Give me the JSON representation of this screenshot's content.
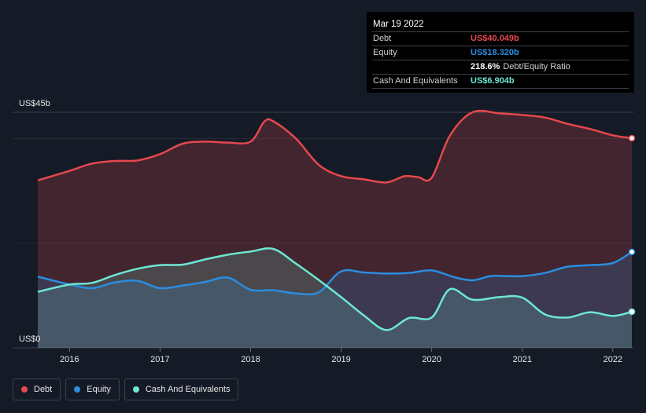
{
  "tooltip": {
    "date": "Mar 19 2022",
    "debt_label": "Debt",
    "debt_value": "US$40.049b",
    "equity_label": "Equity",
    "equity_value": "US$18.320b",
    "ratio_value": "218.6%",
    "ratio_label": "Debt/Equity Ratio",
    "cash_label": "Cash And Equivalents",
    "cash_value": "US$6.904b"
  },
  "legend": {
    "debt": "Debt",
    "equity": "Equity",
    "cash": "Cash And Equivalents"
  },
  "colors": {
    "debt": "#e5484d",
    "equity": "#2b8de0",
    "cash": "#6ee7d4",
    "background": "#151b26"
  },
  "chart_data": {
    "type": "area",
    "title": "",
    "xlabel": "",
    "ylabel": "",
    "ylim": [
      0,
      45
    ],
    "y_ticks": [
      {
        "value": 45,
        "label": "US$45b"
      },
      {
        "value": 0,
        "label": "US$0"
      }
    ],
    "x_ticks": [
      {
        "value": 2016,
        "label": "2016"
      },
      {
        "value": 2017,
        "label": "2017"
      },
      {
        "value": 2018,
        "label": "2018"
      },
      {
        "value": 2019,
        "label": "2019"
      },
      {
        "value": 2020,
        "label": "2020"
      },
      {
        "value": 2021,
        "label": "2021"
      },
      {
        "value": 2022,
        "label": "2022"
      }
    ],
    "xlim": [
      2015.6,
      2022.22
    ],
    "legend_position": "bottom-left",
    "series": [
      {
        "name": "Debt",
        "points": [
          [
            2015.65,
            32
          ],
          [
            2016.0,
            33.8
          ],
          [
            2016.25,
            35.2
          ],
          [
            2016.5,
            35.7
          ],
          [
            2016.75,
            35.8
          ],
          [
            2017.0,
            37
          ],
          [
            2017.25,
            39
          ],
          [
            2017.5,
            39.4
          ],
          [
            2017.75,
            39.2
          ],
          [
            2018.0,
            39.4
          ],
          [
            2018.15,
            43.2
          ],
          [
            2018.25,
            43.3
          ],
          [
            2018.5,
            40
          ],
          [
            2018.75,
            35
          ],
          [
            2019.0,
            32.8
          ],
          [
            2019.25,
            32.2
          ],
          [
            2019.5,
            31.6
          ],
          [
            2019.7,
            32.8
          ],
          [
            2019.85,
            32.6
          ],
          [
            2020.0,
            32.5
          ],
          [
            2020.2,
            40.5
          ],
          [
            2020.45,
            45
          ],
          [
            2020.75,
            44.8
          ],
          [
            2021.0,
            44.5
          ],
          [
            2021.25,
            44
          ],
          [
            2021.5,
            42.8
          ],
          [
            2021.75,
            41.8
          ],
          [
            2022.0,
            40.6
          ],
          [
            2022.21,
            40.05
          ]
        ]
      },
      {
        "name": "Equity",
        "points": [
          [
            2015.65,
            13.6
          ],
          [
            2016.0,
            12.1
          ],
          [
            2016.25,
            11.4
          ],
          [
            2016.5,
            12.5
          ],
          [
            2016.75,
            12.8
          ],
          [
            2017.0,
            11.4
          ],
          [
            2017.25,
            11.9
          ],
          [
            2017.5,
            12.6
          ],
          [
            2017.75,
            13.4
          ],
          [
            2018.0,
            11.1
          ],
          [
            2018.25,
            11
          ],
          [
            2018.5,
            10.4
          ],
          [
            2018.75,
            10.6
          ],
          [
            2019.0,
            14.6
          ],
          [
            2019.25,
            14.4
          ],
          [
            2019.5,
            14.2
          ],
          [
            2019.75,
            14.3
          ],
          [
            2020.0,
            14.8
          ],
          [
            2020.25,
            13.5
          ],
          [
            2020.45,
            12.9
          ],
          [
            2020.65,
            13.7
          ],
          [
            2020.85,
            13.7
          ],
          [
            2021.0,
            13.7
          ],
          [
            2021.25,
            14.3
          ],
          [
            2021.5,
            15.5
          ],
          [
            2021.75,
            15.8
          ],
          [
            2022.0,
            16.2
          ],
          [
            2022.21,
            18.32
          ]
        ]
      },
      {
        "name": "Cash And Equivalents",
        "points": [
          [
            2015.65,
            10.7
          ],
          [
            2016.0,
            12.1
          ],
          [
            2016.25,
            12.4
          ],
          [
            2016.5,
            13.9
          ],
          [
            2016.75,
            15.1
          ],
          [
            2017.0,
            15.8
          ],
          [
            2017.25,
            15.9
          ],
          [
            2017.5,
            16.9
          ],
          [
            2017.75,
            17.8
          ],
          [
            2018.0,
            18.4
          ],
          [
            2018.25,
            18.9
          ],
          [
            2018.5,
            16.1
          ],
          [
            2018.75,
            13
          ],
          [
            2019.0,
            9.7
          ],
          [
            2019.25,
            6.2
          ],
          [
            2019.5,
            3.4
          ],
          [
            2019.75,
            5.7
          ],
          [
            2020.0,
            5.8
          ],
          [
            2020.2,
            11.2
          ],
          [
            2020.45,
            9.2
          ],
          [
            2020.75,
            9.7
          ],
          [
            2021.0,
            9.6
          ],
          [
            2021.25,
            6.4
          ],
          [
            2021.5,
            5.8
          ],
          [
            2021.75,
            6.8
          ],
          [
            2022.0,
            6.1
          ],
          [
            2022.21,
            6.9
          ]
        ]
      }
    ]
  }
}
